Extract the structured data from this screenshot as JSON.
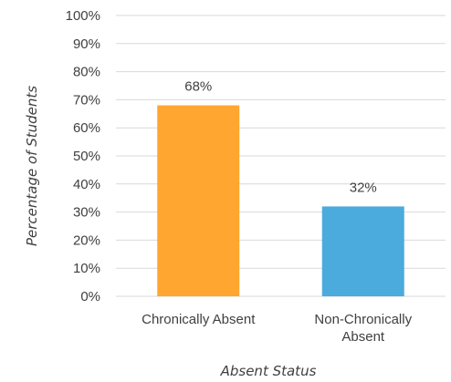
{
  "chart_data": {
    "type": "bar",
    "categories": [
      [
        "Chronically Absent"
      ],
      [
        "Non-Chronically",
        "Absent"
      ]
    ],
    "values": [
      68,
      32
    ],
    "data_labels": [
      "68%",
      "32%"
    ],
    "colors": [
      "#FFA630",
      "#4AABDC"
    ],
    "xlabel": "Absent Status",
    "ylabel": "Percentage of Students",
    "ylim": [
      0,
      100
    ],
    "yticks": [
      "0%",
      "10%",
      "20%",
      "30%",
      "40%",
      "50%",
      "60%",
      "70%",
      "80%",
      "90%",
      "100%"
    ],
    "grid": true,
    "legend": "none"
  }
}
